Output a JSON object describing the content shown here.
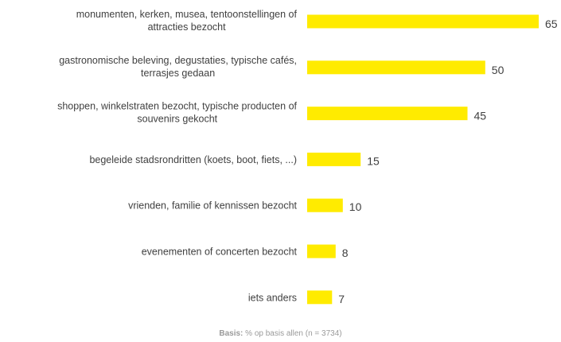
{
  "chart_data": {
    "type": "bar",
    "orientation": "horizontal",
    "categories": [
      [
        "monumenten, kerken, musea, tentoonstellingen of",
        "attracties bezocht"
      ],
      [
        "gastronomische beleving, degustaties, typische cafés,",
        "terrasjes gedaan"
      ],
      [
        "shoppen, winkelstraten bezocht, typische producten of",
        "souvenirs gekocht"
      ],
      [
        "begeleide stadsrondritten (koets, boot, fiets, ...)"
      ],
      [
        "vrienden, familie of kennissen bezocht"
      ],
      [
        "evenementen of concerten bezocht"
      ],
      [
        "iets anders"
      ]
    ],
    "values": [
      65,
      50,
      45,
      15,
      10,
      8,
      7
    ],
    "xlim": [
      0,
      65
    ],
    "bar_color": "#FFEB00",
    "label_color": "#404040",
    "grid": false,
    "legend": "none"
  },
  "footnote": {
    "bold": "Basis:",
    "text": " % op basis allen (n = 3734)"
  }
}
